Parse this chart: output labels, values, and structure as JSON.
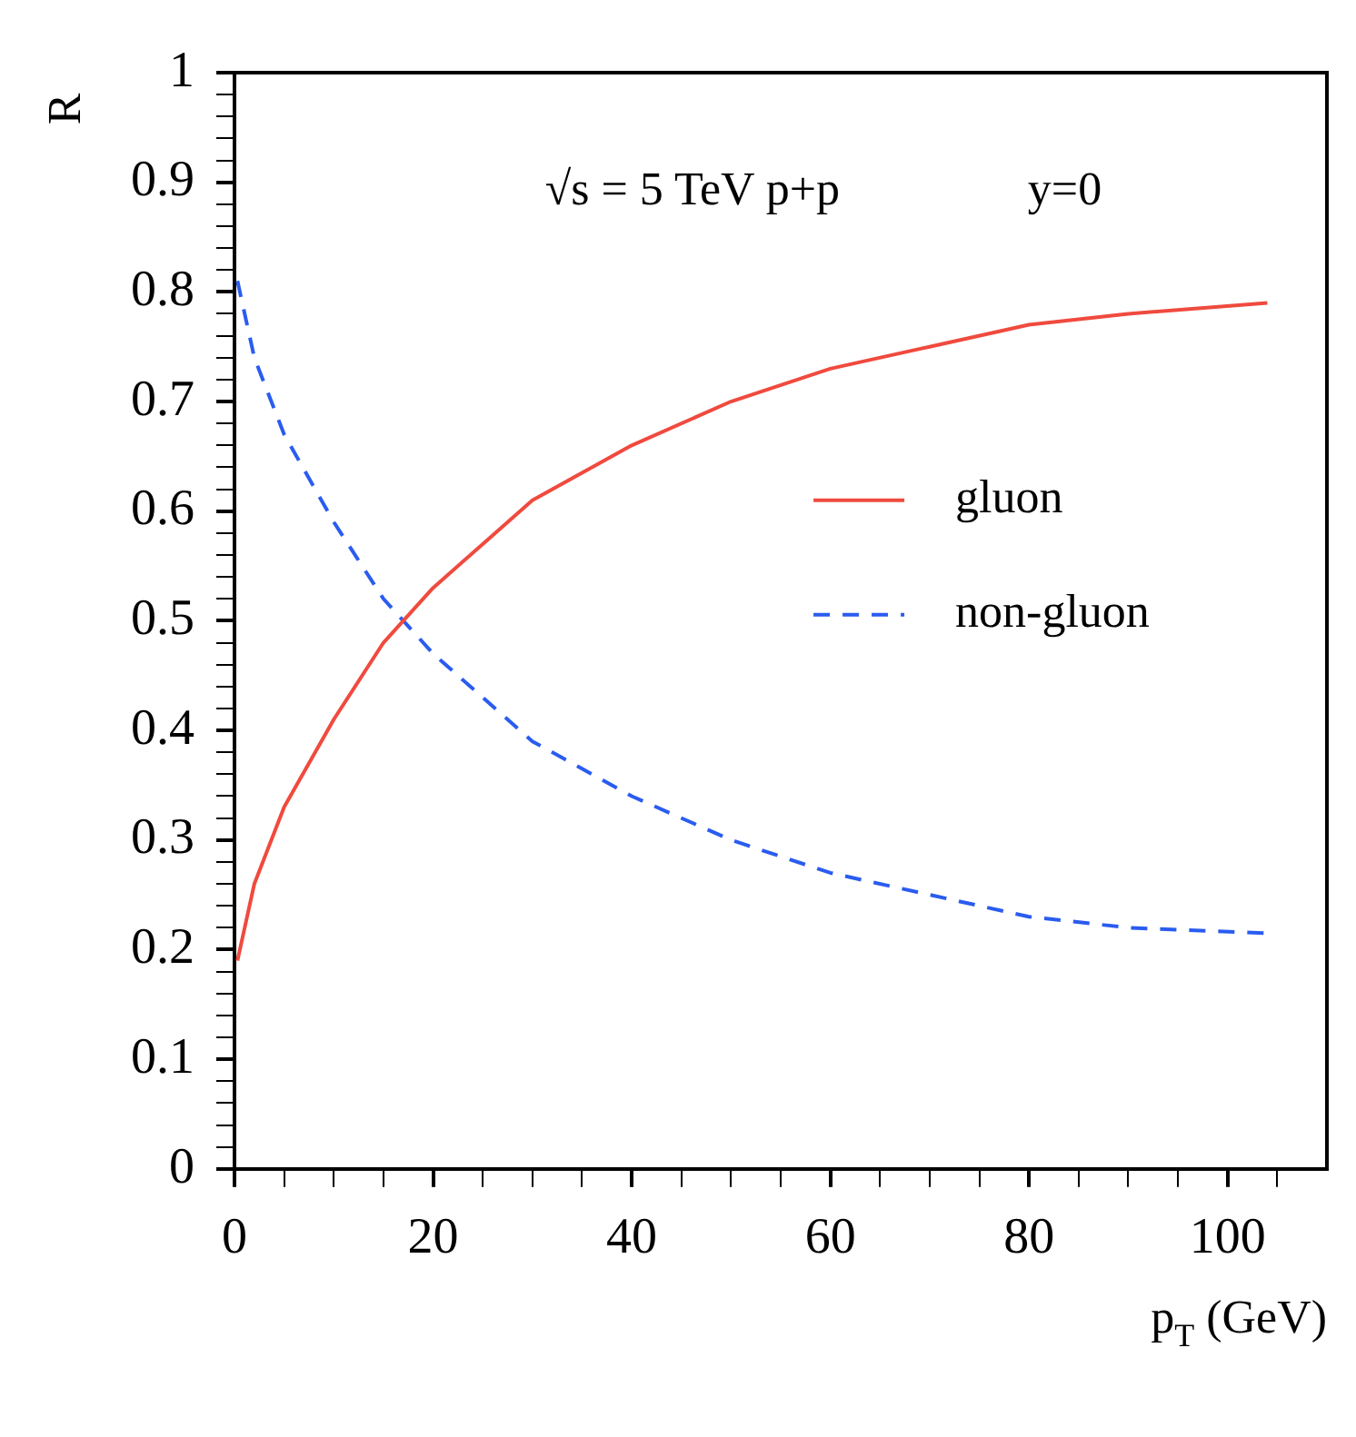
{
  "chart_data": {
    "type": "line",
    "xlabel": "p$_{T}$ (GeV)",
    "ylabel": "R",
    "annotations": [
      "√s = 5 TeV p+p",
      "y=0"
    ],
    "xlim": [
      0,
      110
    ],
    "ylim": [
      0,
      1
    ],
    "xticks": [
      0,
      {
        "value": 5,
        "label": null
      },
      {
        "value": 10,
        "label": null
      },
      {
        "value": 15,
        "label": null
      },
      20,
      {
        "value": 25,
        "label": null
      },
      {
        "value": 30,
        "label": null
      },
      {
        "value": 35,
        "label": null
      },
      40,
      {
        "value": 45,
        "label": null
      },
      {
        "value": 50,
        "label": null
      },
      {
        "value": 55,
        "label": null
      },
      60,
      {
        "value": 65,
        "label": null
      },
      {
        "value": 70,
        "label": null
      },
      {
        "value": 75,
        "label": null
      },
      80,
      {
        "value": 85,
        "label": null
      },
      {
        "value": 90,
        "label": null
      },
      {
        "value": 95,
        "label": null
      },
      100,
      {
        "value": 105,
        "label": null
      }
    ],
    "yticks": [
      0,
      {
        "value": 0.02,
        "label": null
      },
      {
        "value": 0.04,
        "label": null
      },
      {
        "value": 0.06,
        "label": null
      },
      {
        "value": 0.08,
        "label": null
      },
      0.1,
      {
        "value": 0.12,
        "label": null
      },
      {
        "value": 0.14,
        "label": null
      },
      {
        "value": 0.16,
        "label": null
      },
      {
        "value": 0.18,
        "label": null
      },
      0.2,
      {
        "value": 0.22,
        "label": null
      },
      {
        "value": 0.24,
        "label": null
      },
      {
        "value": 0.26,
        "label": null
      },
      {
        "value": 0.28,
        "label": null
      },
      0.3,
      {
        "value": 0.32,
        "label": null
      },
      {
        "value": 0.34,
        "label": null
      },
      {
        "value": 0.36,
        "label": null
      },
      {
        "value": 0.38,
        "label": null
      },
      0.4,
      {
        "value": 0.42,
        "label": null
      },
      {
        "value": 0.44,
        "label": null
      },
      {
        "value": 0.46,
        "label": null
      },
      {
        "value": 0.48,
        "label": null
      },
      0.5,
      {
        "value": 0.52,
        "label": null
      },
      {
        "value": 0.54,
        "label": null
      },
      {
        "value": 0.56,
        "label": null
      },
      {
        "value": 0.58,
        "label": null
      },
      0.6,
      {
        "value": 0.62,
        "label": null
      },
      {
        "value": 0.64,
        "label": null
      },
      {
        "value": 0.66,
        "label": null
      },
      {
        "value": 0.68,
        "label": null
      },
      0.7,
      {
        "value": 0.72,
        "label": null
      },
      {
        "value": 0.74,
        "label": null
      },
      {
        "value": 0.76,
        "label": null
      },
      {
        "value": 0.78,
        "label": null
      },
      0.8,
      {
        "value": 0.82,
        "label": null
      },
      {
        "value": 0.84,
        "label": null
      },
      {
        "value": 0.86,
        "label": null
      },
      {
        "value": 0.88,
        "label": null
      },
      0.9,
      {
        "value": 0.92,
        "label": null
      },
      {
        "value": 0.94,
        "label": null
      },
      {
        "value": 0.96,
        "label": null
      },
      {
        "value": 0.98,
        "label": null
      },
      1
    ],
    "grid": false,
    "legend": "right",
    "marker": "none",
    "x": [
      0.3,
      2,
      5,
      10,
      15,
      17,
      20,
      25,
      30,
      40,
      50,
      60,
      70,
      80,
      90,
      104
    ],
    "series": [
      {
        "name": "gluon",
        "color": "#f04a3e",
        "line_style": "solid",
        "values": [
          0.19,
          0.26,
          0.33,
          0.41,
          0.48,
          0.5,
          0.53,
          0.57,
          0.61,
          0.66,
          0.7,
          0.73,
          0.75,
          0.77,
          0.78,
          0.79
        ]
      },
      {
        "name": "non-gluon",
        "color": "#2a5cf0",
        "line_style": "dashed",
        "values": [
          0.81,
          0.74,
          0.67,
          0.59,
          0.52,
          0.5,
          0.47,
          0.43,
          0.39,
          0.34,
          0.3,
          0.27,
          0.25,
          0.23,
          0.22,
          0.215
        ]
      }
    ]
  }
}
